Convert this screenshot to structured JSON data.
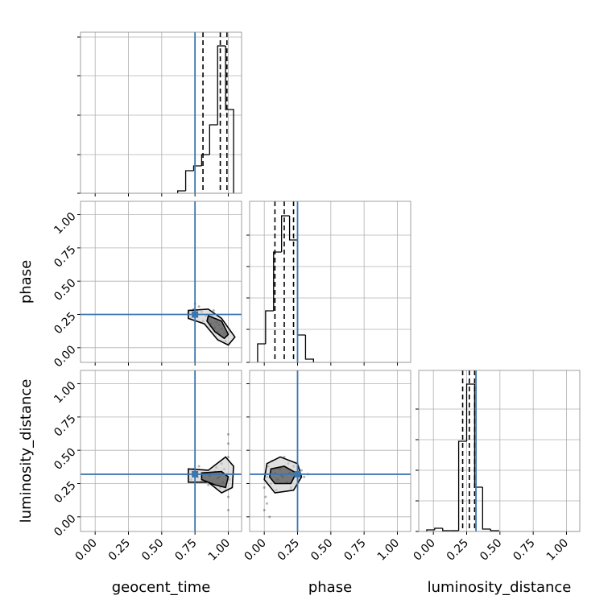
{
  "chart_data": {
    "type": "corner",
    "grid": true,
    "truth_color": "#3b76b0",
    "hist_color": "#000000",
    "lim": [
      -0.11,
      1.1
    ],
    "ticks": [
      {
        "value": 0,
        "label": "0.00"
      },
      {
        "value": 0.25,
        "label": "0.25"
      },
      {
        "value": 0.5,
        "label": "0.50"
      },
      {
        "value": 0.75,
        "label": "0.75"
      },
      {
        "value": 1,
        "label": "1.00"
      }
    ],
    "parameters": [
      {
        "label": "geocent_time",
        "truth": 0.75,
        "quantiles": [
          0.81,
          0.94,
          0.99
        ],
        "hist": {
          "bins": [
            0.62,
            0.68,
            0.74,
            0.8,
            0.86,
            0.92,
            0.98,
            1.04
          ],
          "counts": [
            3,
            28,
            34,
            48,
            85,
            183,
            104
          ]
        },
        "hist_ylim": [
          0,
          200
        ],
        "hist_yticks": [
          0,
          48,
          97,
          146,
          194
        ]
      },
      {
        "label": "phase",
        "truth": 0.25,
        "quantiles": [
          0.08,
          0.15,
          0.22
        ],
        "hist": {
          "bins": [
            -0.05,
            0.01,
            0.07,
            0.13,
            0.19,
            0.25,
            0.31,
            0.37
          ],
          "counts": [
            23,
            64,
            137,
            182,
            152,
            34,
            4
          ]
        },
        "hist_ylim": [
          0,
          200
        ],
        "hist_yticks": [
          0,
          41,
          80,
          119,
          158
        ]
      },
      {
        "label": "luminosity_distance",
        "truth": 0.32,
        "quantiles": [
          0.22,
          0.27,
          0.31
        ],
        "hist": {
          "bins": [
            -0.05,
            0.01,
            0.07,
            0.13,
            0.19,
            0.25,
            0.31,
            0.37,
            0.43,
            0.49
          ],
          "counts": [
            2,
            4,
            1,
            1,
            112,
            183,
            55,
            3,
            1
          ]
        },
        "hist_ylim": [
          0,
          200
        ],
        "hist_yticks": [
          0,
          38,
          76,
          114,
          152
        ]
      }
    ],
    "pairs": [
      {
        "points": {
          "x": [
            0.7,
            0.72,
            0.74,
            0.76,
            0.78,
            0.8,
            0.83,
            0.85,
            0.87,
            0.88,
            0.9,
            0.91,
            0.92,
            0.93,
            0.94,
            0.95,
            0.96,
            0.97,
            0.98,
            0.99,
            1.0,
            1.01,
            0.89,
            0.86,
            0.81,
            0.75
          ],
          "y": [
            0.26,
            0.22,
            0.29,
            0.25,
            0.31,
            0.27,
            0.24,
            0.21,
            0.18,
            0.23,
            0.15,
            0.19,
            0.12,
            0.17,
            0.1,
            0.14,
            0.08,
            0.11,
            0.05,
            0.09,
            0.03,
            0.12,
            0.28,
            0.16,
            0.2,
            0.33
          ]
        },
        "contours": [
          {
            "x": [
              0.7,
              0.85,
              0.95,
              1.05,
              1.0,
              0.92,
              0.82,
              0.7
            ],
            "y": [
              0.28,
              0.29,
              0.22,
              0.08,
              0.02,
              0.06,
              0.18,
              0.22
            ]
          },
          {
            "x": [
              0.85,
              0.95,
              1.0,
              0.97,
              0.9,
              0.84
            ],
            "y": [
              0.24,
              0.2,
              0.1,
              0.07,
              0.12,
              0.2
            ]
          }
        ]
      },
      {
        "points": {
          "x": [
            0.7,
            0.72,
            0.74,
            0.77,
            0.8,
            0.83,
            0.86,
            0.88,
            0.9,
            0.92,
            0.94,
            0.95,
            0.96,
            0.97,
            0.98,
            0.99,
            1.0,
            1.0,
            1.0,
            1.0,
            1.0,
            0.91,
            0.85,
            0.78,
            1.01,
            0.93
          ],
          "y": [
            0.32,
            0.28,
            0.36,
            0.3,
            0.27,
            0.33,
            0.31,
            0.25,
            0.34,
            0.29,
            0.22,
            0.4,
            0.26,
            0.36,
            0.2,
            0.32,
            0.05,
            0.15,
            0.45,
            0.55,
            0.62,
            0.37,
            0.24,
            0.38,
            0.28,
            0.3
          ]
        },
        "contours": [
          {
            "x": [
              0.7,
              0.85,
              0.98,
              1.04,
              1.03,
              0.95,
              0.85,
              0.7
            ],
            "y": [
              0.36,
              0.35,
              0.45,
              0.38,
              0.22,
              0.18,
              0.26,
              0.26
            ]
          },
          {
            "x": [
              0.8,
              0.95,
              1.0,
              0.98,
              0.9,
              0.8
            ],
            "y": [
              0.33,
              0.34,
              0.3,
              0.22,
              0.24,
              0.28
            ]
          }
        ]
      },
      {
        "points": {
          "x": [
            0.0,
            0.01,
            0.02,
            0.03,
            0.05,
            0.06,
            0.08,
            0.1,
            0.12,
            0.14,
            0.15,
            0.17,
            0.19,
            0.2,
            0.22,
            0.24,
            0.26,
            0.28,
            0.3,
            0.33,
            0.02,
            0.0,
            0.09,
            0.18,
            0.13,
            0.04
          ],
          "y": [
            0.05,
            0.15,
            0.3,
            0.38,
            0.25,
            0.42,
            0.33,
            0.28,
            0.36,
            0.3,
            0.45,
            0.26,
            0.33,
            0.22,
            0.38,
            0.31,
            0.28,
            0.35,
            0.3,
            0.32,
            0.1,
            0.22,
            0.2,
            0.4,
            0.31,
            0.0
          ]
        },
        "contours": [
          {
            "x": [
              0.02,
              0.12,
              0.25,
              0.28,
              0.22,
              0.08,
              0.0
            ],
            "y": [
              0.4,
              0.45,
              0.4,
              0.3,
              0.2,
              0.18,
              0.28
            ]
          },
          {
            "x": [
              0.05,
              0.15,
              0.24,
              0.2,
              0.08,
              0.04
            ],
            "y": [
              0.36,
              0.38,
              0.33,
              0.25,
              0.25,
              0.3
            ]
          }
        ]
      }
    ]
  }
}
